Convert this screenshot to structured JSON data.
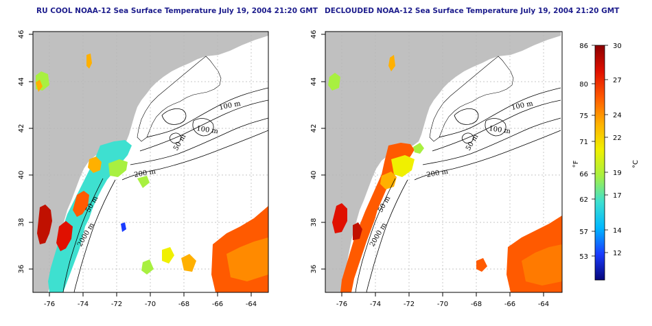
{
  "titles": {
    "left": "RU COOL NOAA-12 Sea Surface Temperature July 19, 2004 21:20 GMT",
    "right": "DECLOUDED NOAA-12 Sea Surface Temperature July 19, 2004 21:20 GMT"
  },
  "axes": {
    "lon_ticks": [
      "-76",
      "-74",
      "-72",
      "-70",
      "-68",
      "-66",
      "-64"
    ],
    "lat_ticks": [
      "36",
      "38",
      "40",
      "42",
      "44",
      "46"
    ]
  },
  "contour_labels": [
    "100 m",
    "100 m",
    "50 m",
    "200 m",
    "50 m",
    "2000 m"
  ],
  "colorbar": {
    "fahrenheit_ticks": [
      "86",
      "80",
      "75",
      "71",
      "66",
      "62",
      "57",
      "53"
    ],
    "celsius_ticks": [
      "30",
      "27",
      "24",
      "22",
      "19",
      "17",
      "14",
      "12"
    ],
    "fahrenheit_unit": "°F",
    "celsius_unit": "°C"
  },
  "colors": {
    "land": "#c0c0c0",
    "ocean": "#ffffff",
    "title": "#1c1c8c",
    "colorbar_stops": [
      "#06067a",
      "#1a3cff",
      "#00b8ff",
      "#3ee0d0",
      "#a8f040",
      "#f0f000",
      "#ffb000",
      "#ff5a00",
      "#e01000",
      "#8c0000"
    ]
  }
}
